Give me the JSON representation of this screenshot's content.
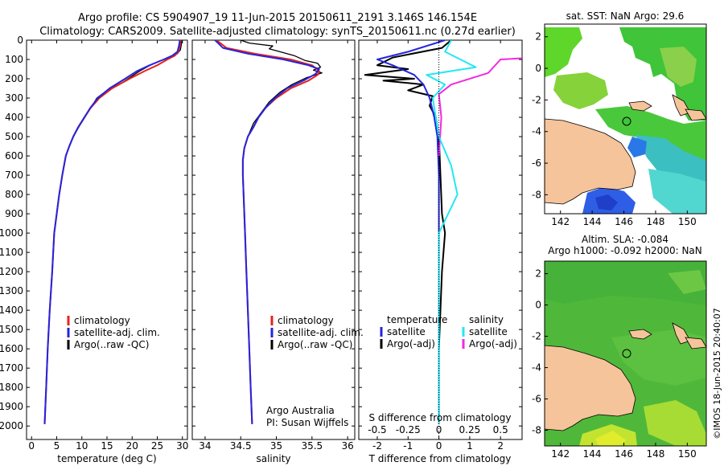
{
  "header": {
    "line1": "Argo profile: CS 5904907_19 11-Jun-2015 20150611_2191 3.146S 146.154E",
    "line2": "Climatology: CARS2009. Satellite-adjusted climatology: synTS_20150611.nc (0.27d earlier)"
  },
  "depth_ticks": [
    "0",
    "100",
    "200",
    "300",
    "400",
    "500",
    "600",
    "700",
    "800",
    "900",
    "1000",
    "1100",
    "1200",
    "1300",
    "1400",
    "1500",
    "1600",
    "1700",
    "1800",
    "1900",
    "2000"
  ],
  "legend_main": [
    "climatology",
    "satellite-adj. clim.",
    "Argo(..raw -QC)"
  ],
  "legend_diff": {
    "temperature": "temperature",
    "salinity": "salinity",
    "satellite": "satellite",
    "argo": "Argo(-adj)"
  },
  "credit": {
    "line1": "Argo Australia",
    "line2": "PI: Susan Wijffels"
  },
  "map_sst": {
    "title": "sat. SST: NaN Argo: 29.6"
  },
  "map_sla": {
    "title1": "Altim. SLA: -0.084",
    "title2": "Argo h1000: -0.092 h2000: NaN"
  },
  "stamp": "©IMOS 18-Jun-2015 20:40:07",
  "colors": {
    "climatology": "#e8231a",
    "satellite": "#2424e0",
    "argo": "#000000",
    "sal_satellite": "#22e8f0",
    "sal_argo": "#f02ae0",
    "land": "#f5c49a"
  },
  "chart_data": [
    {
      "type": "line",
      "xlabel": "temperature (deg C)",
      "xticks": [
        "0",
        "5",
        "10",
        "15",
        "20",
        "25",
        "30"
      ],
      "xlim": [
        -1,
        31
      ],
      "ylim": [
        0,
        2070
      ],
      "series": [
        {
          "name": "climatology",
          "points": [
            [
              29.7,
              0
            ],
            [
              29.5,
              30
            ],
            [
              29.2,
              60
            ],
            [
              28.5,
              80
            ],
            [
              27.0,
              100
            ],
            [
              25.0,
              130
            ],
            [
              22.5,
              160
            ],
            [
              19.5,
              200
            ],
            [
              16.0,
              250
            ],
            [
              13.5,
              300
            ],
            [
              11.8,
              350
            ],
            [
              10.5,
              400
            ],
            [
              9.3,
              450
            ],
            [
              8.3,
              500
            ],
            [
              7.5,
              550
            ],
            [
              6.8,
              600
            ],
            [
              6.1,
              700
            ],
            [
              5.5,
              800
            ],
            [
              5.0,
              900
            ],
            [
              4.5,
              1000
            ],
            [
              4.1,
              1200
            ],
            [
              3.6,
              1400
            ],
            [
              3.2,
              1600
            ],
            [
              2.9,
              1800
            ],
            [
              2.6,
              1990
            ]
          ]
        },
        {
          "name": "satellite-adj. clim.",
          "points": [
            [
              29.5,
              0
            ],
            [
              29.3,
              30
            ],
            [
              29.0,
              60
            ],
            [
              28.0,
              80
            ],
            [
              26.3,
              100
            ],
            [
              23.5,
              130
            ],
            [
              21.0,
              160
            ],
            [
              18.6,
              200
            ],
            [
              15.5,
              250
            ],
            [
              13.2,
              300
            ],
            [
              11.7,
              350
            ],
            [
              10.5,
              400
            ],
            [
              9.3,
              450
            ],
            [
              8.3,
              500
            ],
            [
              7.5,
              550
            ],
            [
              6.8,
              600
            ],
            [
              6.1,
              700
            ],
            [
              5.5,
              800
            ],
            [
              5.0,
              900
            ],
            [
              4.5,
              1000
            ],
            [
              4.1,
              1200
            ],
            [
              3.6,
              1400
            ],
            [
              3.2,
              1600
            ],
            [
              2.9,
              1800
            ],
            [
              2.6,
              1990
            ]
          ]
        },
        {
          "name": "Argo(..raw -QC)",
          "points": [
            [
              29.9,
              0
            ],
            [
              29.8,
              20
            ],
            [
              29.6,
              50
            ],
            [
              29.0,
              70
            ],
            [
              27.5,
              90
            ],
            [
              25.2,
              110
            ],
            [
              23.6,
              130
            ],
            [
              21.5,
              160
            ],
            [
              19.8,
              190
            ],
            [
              18.0,
              220
            ],
            [
              15.0,
              260
            ],
            [
              13.0,
              300
            ],
            [
              11.8,
              350
            ],
            [
              10.6,
              400
            ],
            [
              9.4,
              450
            ],
            [
              8.3,
              500
            ],
            [
              7.5,
              550
            ],
            [
              6.8,
              600
            ],
            [
              6.1,
              700
            ],
            [
              5.5,
              800
            ],
            [
              5.0,
              900
            ],
            [
              4.5,
              1000
            ],
            [
              4.1,
              1200
            ],
            [
              3.6,
              1400
            ],
            [
              3.2,
              1600
            ],
            [
              2.9,
              1800
            ],
            [
              2.6,
              1990
            ]
          ]
        }
      ]
    },
    {
      "type": "line",
      "xlabel": "salinity",
      "xticks": [
        "34",
        "34.5",
        "35",
        "35.5",
        "36"
      ],
      "xlim": [
        33.82,
        36.1
      ],
      "ylim": [
        0,
        2070
      ],
      "series": [
        {
          "name": "climatology",
          "points": [
            [
              34.16,
              0
            ],
            [
              34.3,
              40
            ],
            [
              34.7,
              70
            ],
            [
              35.2,
              100
            ],
            [
              35.5,
              130
            ],
            [
              35.6,
              160
            ],
            [
              35.58,
              180
            ],
            [
              35.45,
              210
            ],
            [
              35.2,
              250
            ],
            [
              35.0,
              300
            ],
            [
              34.85,
              350
            ],
            [
              34.75,
              400
            ],
            [
              34.68,
              450
            ],
            [
              34.6,
              500
            ],
            [
              34.55,
              560
            ],
            [
              34.53,
              620
            ],
            [
              34.53,
              700
            ],
            [
              34.54,
              800
            ],
            [
              34.55,
              900
            ],
            [
              34.56,
              1000
            ],
            [
              34.58,
              1200
            ],
            [
              34.6,
              1400
            ],
            [
              34.62,
              1600
            ],
            [
              34.64,
              1800
            ],
            [
              34.66,
              1990
            ]
          ]
        },
        {
          "name": "satellite-adj. clim.",
          "points": [
            [
              34.14,
              0
            ],
            [
              34.25,
              40
            ],
            [
              34.6,
              70
            ],
            [
              35.1,
              100
            ],
            [
              35.45,
              130
            ],
            [
              35.6,
              150
            ],
            [
              35.55,
              175
            ],
            [
              35.38,
              210
            ],
            [
              35.15,
              250
            ],
            [
              34.98,
              300
            ],
            [
              34.85,
              350
            ],
            [
              34.75,
              400
            ],
            [
              34.68,
              450
            ],
            [
              34.6,
              500
            ],
            [
              34.55,
              560
            ],
            [
              34.53,
              620
            ],
            [
              34.53,
              700
            ],
            [
              34.54,
              800
            ],
            [
              34.55,
              900
            ],
            [
              34.56,
              1000
            ],
            [
              34.58,
              1200
            ],
            [
              34.6,
              1400
            ],
            [
              34.62,
              1600
            ],
            [
              34.64,
              1800
            ],
            [
              34.66,
              1990
            ]
          ]
        },
        {
          "name": "Argo(..raw -QC)",
          "points": [
            [
              34.5,
              0
            ],
            [
              34.62,
              15
            ],
            [
              34.95,
              30
            ],
            [
              34.9,
              45
            ],
            [
              35.05,
              60
            ],
            [
              35.25,
              80
            ],
            [
              35.4,
              105
            ],
            [
              35.58,
              120
            ],
            [
              35.62,
              140
            ],
            [
              35.52,
              155
            ],
            [
              35.64,
              170
            ],
            [
              35.42,
              195
            ],
            [
              35.22,
              230
            ],
            [
              35.05,
              270
            ],
            [
              34.9,
              320
            ],
            [
              34.8,
              370
            ],
            [
              34.68,
              430
            ],
            [
              34.6,
              500
            ],
            [
              34.55,
              560
            ],
            [
              34.53,
              620
            ],
            [
              34.53,
              700
            ],
            [
              34.54,
              800
            ],
            [
              34.55,
              900
            ],
            [
              34.56,
              1000
            ],
            [
              34.58,
              1200
            ],
            [
              34.6,
              1400
            ],
            [
              34.62,
              1600
            ]
          ]
        }
      ]
    },
    {
      "type": "line",
      "xlabel_top": "S difference from climatology",
      "xlabel": "T difference from climatology",
      "xticks_top": [
        "-0.5",
        "-0.25",
        "0",
        "0.25",
        "0.5"
      ],
      "xticks": [
        "-2",
        "-1",
        "0",
        "1",
        "2"
      ],
      "xlim": [
        -2.6,
        2.7
      ],
      "ylim": [
        0,
        2070
      ],
      "series": [
        {
          "name": "temperature satellite",
          "points": [
            [
              0.2,
              0
            ],
            [
              -1.0,
              60
            ],
            [
              -2.0,
              100
            ],
            [
              -1.5,
              130
            ],
            [
              -0.8,
              180
            ],
            [
              -0.5,
              230
            ],
            [
              -0.3,
              300
            ],
            [
              -0.15,
              400
            ],
            [
              -0.05,
              500
            ],
            [
              0,
              700
            ],
            [
              0,
              1000
            ],
            [
              0,
              1500
            ],
            [
              0,
              1990
            ]
          ]
        },
        {
          "name": "temperature Argo(-adj)",
          "points": [
            [
              0.4,
              0
            ],
            [
              0.1,
              40
            ],
            [
              -1.5,
              90
            ],
            [
              -2.0,
              130
            ],
            [
              -1.0,
              150
            ],
            [
              -2.4,
              180
            ],
            [
              -0.8,
              200
            ],
            [
              -1.8,
              210
            ],
            [
              -0.5,
              230
            ],
            [
              -1.0,
              260
            ],
            [
              -0.2,
              290
            ],
            [
              -0.3,
              340
            ],
            [
              -0.1,
              400
            ],
            [
              0,
              500
            ],
            [
              0.05,
              700
            ],
            [
              0.1,
              900
            ],
            [
              0.2,
              1000
            ],
            [
              0.1,
              1200
            ],
            [
              0.05,
              1400
            ],
            [
              0,
              1600
            ]
          ]
        },
        {
          "name": "salinity satellite",
          "points": [
            [
              0.1,
              0
            ],
            [
              0.05,
              60
            ],
            [
              0.3,
              140
            ],
            [
              -0.1,
              180
            ],
            [
              0.05,
              230
            ],
            [
              -0.05,
              300
            ],
            [
              0,
              500
            ],
            [
              0.1,
              650
            ],
            [
              0.15,
              800
            ],
            [
              0,
              1000
            ],
            [
              0,
              1500
            ],
            [
              0,
              1990
            ]
          ]
        },
        {
          "name": "salinity Argo(-adj)",
          "points": [
            [
              2.3,
              0
            ],
            [
              1.6,
              60
            ],
            [
              0.5,
              100
            ],
            [
              0.4,
              170
            ],
            [
              0.1,
              230
            ],
            [
              0,
              280
            ],
            [
              0.02,
              400
            ],
            [
              0,
              600
            ]
          ]
        }
      ]
    }
  ],
  "maps": {
    "xticks": [
      "142",
      "144",
      "146",
      "148",
      "150"
    ],
    "yticks": [
      "2",
      "0",
      "-2",
      "-4",
      "-6",
      "-8"
    ]
  }
}
